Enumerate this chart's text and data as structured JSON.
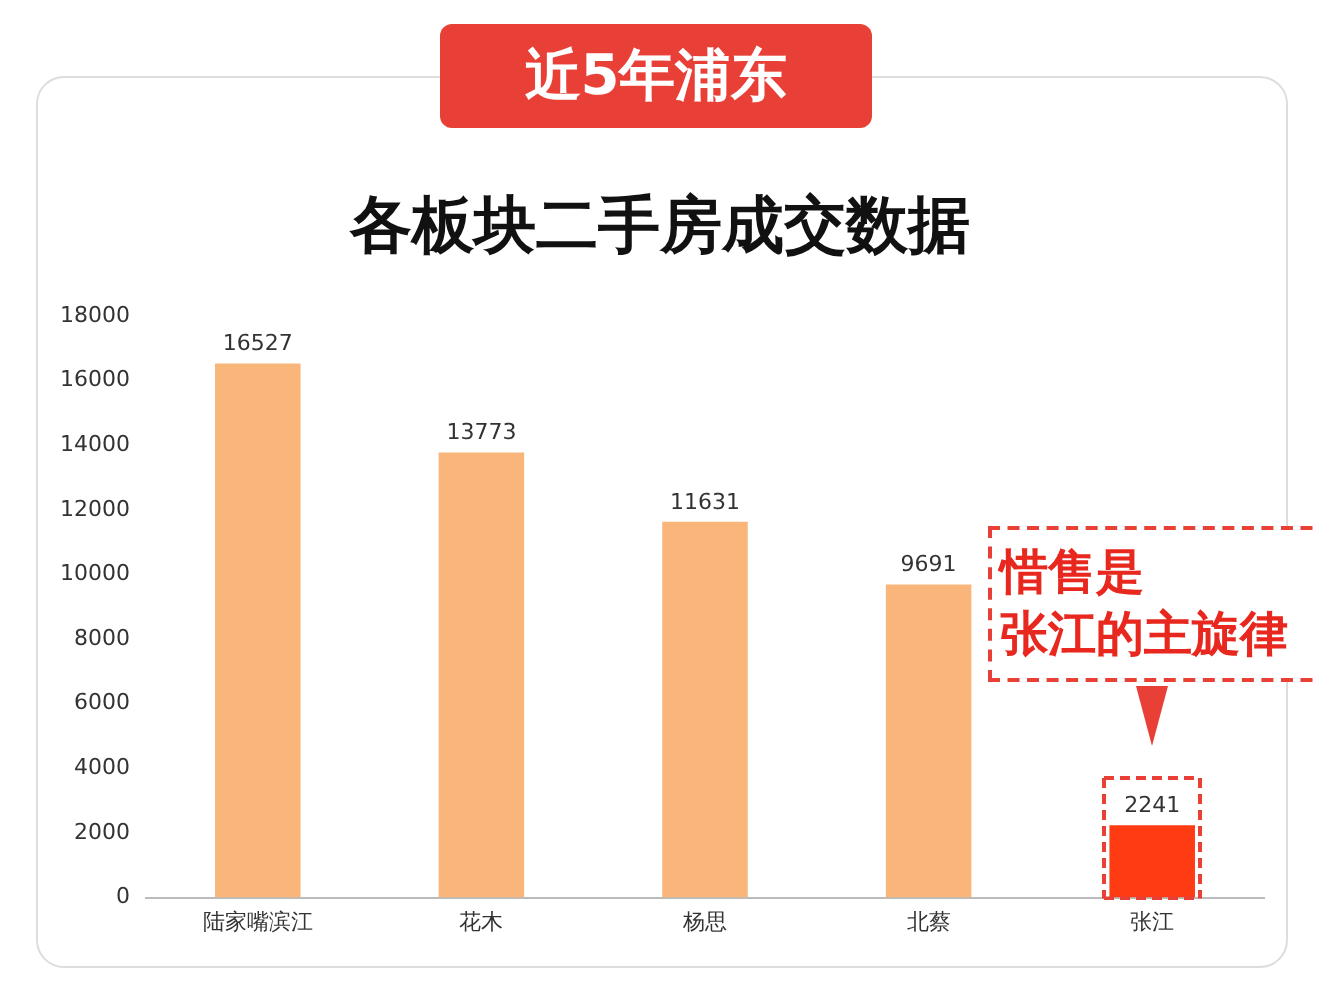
{
  "chart_data": {
    "type": "bar",
    "title": "近5年浦东",
    "subtitle": "各板块二手房成交数据",
    "categories": [
      "陆家嘴滨江",
      "花木",
      "杨思",
      "北蔡",
      "张江"
    ],
    "values": [
      16527,
      13773,
      11631,
      9691,
      2241
    ],
    "colors": [
      "#f9b57a",
      "#f9b57a",
      "#f9b57a",
      "#f9b57a",
      "#ff3b14"
    ],
    "ylim": [
      0,
      18000
    ],
    "yticks": [
      0,
      2000,
      4000,
      6000,
      8000,
      10000,
      12000,
      14000,
      16000,
      18000
    ],
    "grid": false,
    "data_labels": true,
    "annotations": [
      "惜售是",
      "张江的主旋律"
    ]
  }
}
